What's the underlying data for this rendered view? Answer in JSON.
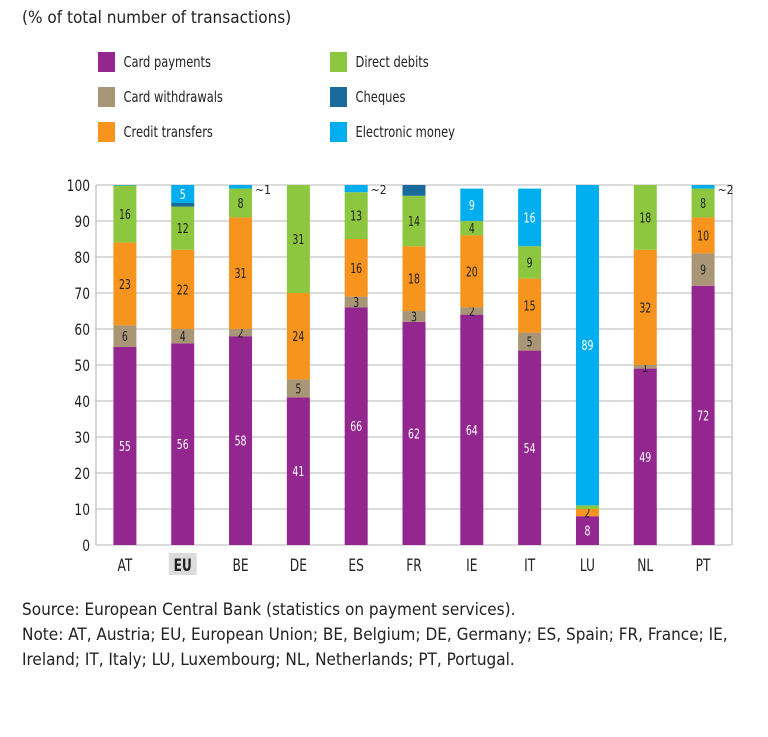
{
  "chart_data": {
    "type": "bar",
    "stacked": true,
    "title": "(% of total number of transactions)",
    "categories": [
      "AT",
      "EU",
      "BE",
      "DE",
      "ES",
      "FR",
      "IE",
      "IT",
      "LU",
      "NL",
      "PT"
    ],
    "highlight_category": "EU",
    "ylim": [
      0,
      100
    ],
    "yticks": [
      0,
      10,
      20,
      30,
      40,
      50,
      60,
      70,
      80,
      90,
      100
    ],
    "grid": true,
    "legend_position": "top",
    "series": [
      {
        "name": "Card payments",
        "color": "#93278f",
        "label_color": "#ffffff",
        "values": [
          55,
          56,
          58,
          41,
          66,
          62,
          64,
          54,
          8,
          49,
          72
        ],
        "labels": [
          "55",
          "56",
          "58",
          "41",
          "66",
          "62",
          "64",
          "54",
          "8",
          "49",
          "72"
        ]
      },
      {
        "name": "Card withdrawals",
        "color": "#a89677",
        "label_color": "#222222",
        "values": [
          6,
          4,
          2,
          5,
          3,
          3,
          2,
          5,
          0,
          1,
          9
        ],
        "labels": [
          "6",
          "4",
          "2",
          "5",
          "3",
          "3",
          "2",
          "5",
          null,
          "1",
          "9"
        ]
      },
      {
        "name": "Credit transfers",
        "color": "#f7941d",
        "label_color": "#222222",
        "values": [
          23,
          22,
          31,
          24,
          16,
          18,
          20,
          15,
          2,
          32,
          10
        ],
        "labels": [
          "23",
          "22",
          "31",
          "24",
          "16",
          "18",
          "20",
          "15",
          "2",
          "32",
          "10"
        ]
      },
      {
        "name": "Direct debits",
        "color": "#8dc63f",
        "label_color": "#222222",
        "values": [
          16,
          12,
          8,
          31,
          13,
          14,
          4,
          9,
          1,
          18,
          8
        ],
        "labels": [
          "16",
          "12",
          "8",
          "31",
          "13",
          "14",
          "4",
          "9",
          "1",
          "18",
          "8"
        ]
      },
      {
        "name": "Cheques",
        "color": "#1b6a9c",
        "label_color": "#ffffff",
        "values": [
          0,
          1,
          0,
          0,
          0,
          3,
          0,
          0,
          0,
          0,
          0
        ],
        "labels": [
          null,
          null,
          null,
          null,
          null,
          null,
          null,
          null,
          null,
          null,
          null
        ]
      },
      {
        "name": "Electronic money",
        "color": "#00aeef",
        "label_color": "#ffffff",
        "values": [
          1,
          5,
          1,
          0,
          2,
          0,
          9,
          16,
          89,
          0,
          2
        ],
        "labels": [
          null,
          "5",
          null,
          null,
          null,
          null,
          "9",
          "16",
          "89",
          null,
          null
        ],
        "outside_labels": [
          null,
          null,
          "1",
          null,
          "2",
          null,
          null,
          null,
          null,
          null,
          "2"
        ]
      }
    ]
  },
  "notes": {
    "source": "Source: European Central Bank (statistics on payment services).",
    "note": "Note: AT, Austria; EU, European Union; BE, Belgium; DE, Germany; ES, Spain; FR, France; IE, Ireland; IT, Italy; LU, Luxembourg; NL, Netherlands; PT, Portugal."
  }
}
